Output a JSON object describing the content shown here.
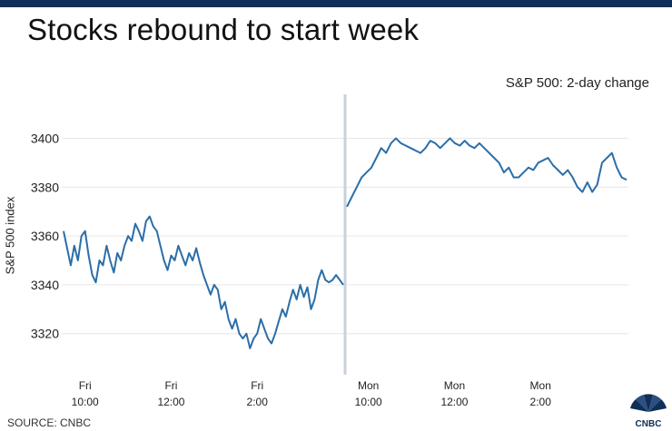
{
  "title": "Stocks rebound to start week",
  "source": "SOURCE: CNBC",
  "logo_text": "CNBC",
  "colors": {
    "line": "#2b6ea8",
    "divider": "#c7d1dc",
    "grid": "#e6e6e6",
    "topbar": "#0f2e58"
  },
  "chart_data": {
    "type": "line",
    "subtitle": "S&P 500: 2-day change",
    "ylabel": "S&P 500 index",
    "ylim": [
      3308,
      3418
    ],
    "yticks": [
      3320,
      3340,
      3360,
      3380,
      3400
    ],
    "grid": true,
    "xticks": [
      {
        "day": "Fri",
        "time": "10:00"
      },
      {
        "day": "Fri",
        "time": "12:00"
      },
      {
        "day": "Fri",
        "time": "2:00"
      },
      {
        "day": "Mon",
        "time": "10:00"
      },
      {
        "day": "Mon",
        "time": "12:00"
      },
      {
        "day": "Mon",
        "time": "2:00"
      }
    ],
    "series": [
      {
        "session": "Fri",
        "time_range": [
          "9:30",
          "4:00"
        ],
        "values": [
          3362,
          3355,
          3348,
          3356,
          3350,
          3360,
          3362,
          3352,
          3344,
          3341,
          3350,
          3348,
          3356,
          3350,
          3345,
          3353,
          3350,
          3356,
          3360,
          3358,
          3365,
          3362,
          3358,
          3366,
          3368,
          3364,
          3362,
          3356,
          3350,
          3346,
          3352,
          3350,
          3356,
          3352,
          3348,
          3353,
          3350,
          3355,
          3349,
          3344,
          3340,
          3336,
          3340,
          3338,
          3330,
          3333,
          3326,
          3322,
          3326,
          3320,
          3318,
          3320,
          3314,
          3318,
          3320,
          3326,
          3322,
          3318,
          3316,
          3320,
          3325,
          3330,
          3327,
          3333,
          3338,
          3334,
          3340,
          3335,
          3339,
          3330,
          3334,
          3342,
          3346,
          3342,
          3341,
          3342,
          3344,
          3342,
          3340
        ]
      },
      {
        "session": "Mon",
        "time_range": [
          "9:30",
          "4:00"
        ],
        "values": [
          3372,
          3376,
          3380,
          3384,
          3386,
          3388,
          3392,
          3396,
          3394,
          3398,
          3400,
          3398,
          3397,
          3396,
          3395,
          3394,
          3396,
          3399,
          3398,
          3396,
          3398,
          3400,
          3398,
          3397,
          3399,
          3397,
          3396,
          3398,
          3396,
          3394,
          3392,
          3390,
          3386,
          3388,
          3384,
          3384,
          3386,
          3388,
          3387,
          3390,
          3391,
          3392,
          3389,
          3387,
          3385,
          3387,
          3384,
          3380,
          3378,
          3382,
          3378,
          3381,
          3390,
          3392,
          3394,
          3388,
          3384,
          3383
        ]
      }
    ]
  }
}
